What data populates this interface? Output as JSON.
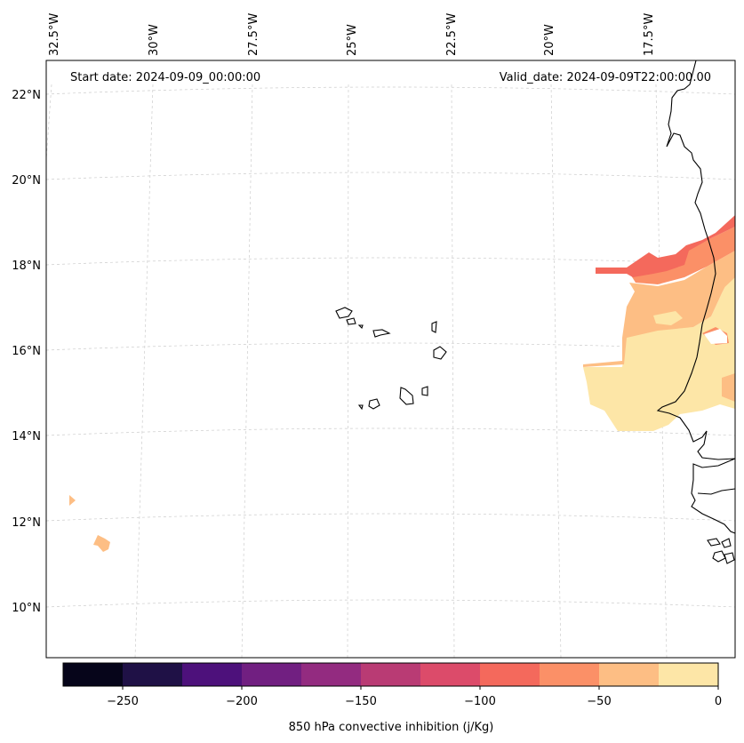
{
  "header": {
    "start_date": "Start date: 2024-09-09_00:00:00",
    "valid_date": "Valid_date: 2024-09-09T22:00:00.00"
  },
  "map": {
    "lon_labels": [
      "32.5°W",
      "30°W",
      "27.5°W",
      "25°W",
      "22.5°W",
      "20°W",
      "17.5°W"
    ],
    "lat_labels": [
      "22°N",
      "20°N",
      "18°N",
      "16°N",
      "14°N",
      "12°N",
      "10°N"
    ]
  },
  "colorbar": {
    "label": "850 hPa convective inhibition (j/Kg)",
    "tick_labels": [
      "−250",
      "−200",
      "−150",
      "−100",
      "−50",
      "0"
    ],
    "colors": [
      "#06051a",
      "#1f1146",
      "#4d117b",
      "#711f81",
      "#932b80",
      "#b93b74",
      "#dc4b6a",
      "#f4695c",
      "#fb9067",
      "#fdbe84",
      "#fde6a7"
    ]
  }
}
